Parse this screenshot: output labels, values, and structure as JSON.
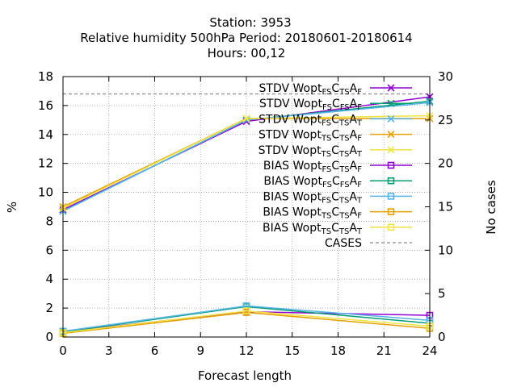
{
  "chart_data": {
    "type": "line",
    "title_lines": [
      "Station:     3953",
      "Relative humidity 500hPa    Period: 20180601-20180614",
      "Hours:  00,12"
    ],
    "xlabel": "Forecast length",
    "ylabel": "%",
    "y2label": "No cases",
    "x": [
      0,
      12,
      24
    ],
    "xticks": [
      0,
      3,
      6,
      9,
      12,
      15,
      18,
      21,
      24
    ],
    "xlim": [
      0,
      24
    ],
    "yticks": [
      0,
      2,
      4,
      6,
      8,
      10,
      12,
      14,
      16,
      18
    ],
    "ylim": [
      0,
      18
    ],
    "y2ticks": [
      0,
      5,
      10,
      15,
      20,
      25,
      30
    ],
    "y2lim": [
      0,
      30
    ],
    "grid": true,
    "legend_position": "top-right",
    "series": [
      {
        "name": "STDV Wopt_{FS}C_{TS}A_{F}",
        "legend_parts": [
          [
            "STDV Wopt",
            ""
          ],
          [
            "FS",
            "sub"
          ],
          [
            "C",
            ""
          ],
          [
            "TS",
            "sub"
          ],
          [
            "A",
            ""
          ],
          [
            "F",
            "sub"
          ]
        ],
        "values": [
          8.8,
          14.9,
          16.6
        ],
        "color": "#9400d3",
        "marker": "x",
        "axis": "y",
        "dash": ""
      },
      {
        "name": "STDV Wopt_{FS}C_{FS}A_{F}",
        "legend_parts": [
          [
            "STDV Wopt",
            ""
          ],
          [
            "FS",
            "sub"
          ],
          [
            "C",
            ""
          ],
          [
            "FS",
            "sub"
          ],
          [
            "A",
            ""
          ],
          [
            "F",
            "sub"
          ]
        ],
        "values": [
          8.7,
          15.0,
          16.3
        ],
        "color": "#009e73",
        "marker": "x",
        "axis": "y",
        "dash": ""
      },
      {
        "name": "STDV Wopt_{FS}C_{TS}A_{T}",
        "legend_parts": [
          [
            "STDV Wopt",
            ""
          ],
          [
            "FS",
            "sub"
          ],
          [
            "C",
            ""
          ],
          [
            "TS",
            "sub"
          ],
          [
            "A",
            ""
          ],
          [
            "T",
            "sub"
          ]
        ],
        "values": [
          8.7,
          15.0,
          16.2
        ],
        "color": "#56b4e9",
        "marker": "x",
        "axis": "y",
        "dash": ""
      },
      {
        "name": "STDV Wopt_{TS}C_{TS}A_{F}",
        "legend_parts": [
          [
            "STDV Wopt",
            ""
          ],
          [
            "TS",
            "sub"
          ],
          [
            "C",
            ""
          ],
          [
            "TS",
            "sub"
          ],
          [
            "A",
            ""
          ],
          [
            "F",
            "sub"
          ]
        ],
        "values": [
          9.0,
          15.1,
          15.1
        ],
        "color": "#e69f00",
        "marker": "x",
        "axis": "y",
        "dash": ""
      },
      {
        "name": "STDV Wopt_{TS}C_{TS}A_{T}",
        "legend_parts": [
          [
            "STDV Wopt",
            ""
          ],
          [
            "TS",
            "sub"
          ],
          [
            "C",
            ""
          ],
          [
            "TS",
            "sub"
          ],
          [
            "A",
            ""
          ],
          [
            "T",
            "sub"
          ]
        ],
        "values": [
          8.9,
          15.1,
          15.3
        ],
        "color": "#f0e442",
        "marker": "x",
        "axis": "y",
        "dash": ""
      },
      {
        "name": "BIAS Wopt_{FS}C_{TS}A_{F}",
        "legend_parts": [
          [
            "BIAS Wopt",
            ""
          ],
          [
            "FS",
            "sub"
          ],
          [
            "C",
            ""
          ],
          [
            "TS",
            "sub"
          ],
          [
            "A",
            ""
          ],
          [
            "F",
            "sub"
          ]
        ],
        "values": [
          0.35,
          1.75,
          1.5
        ],
        "color": "#9400d3",
        "marker": "square",
        "axis": "y",
        "dash": ""
      },
      {
        "name": "BIAS Wopt_{FS}C_{FS}A_{F}",
        "legend_parts": [
          [
            "BIAS Wopt",
            ""
          ],
          [
            "FS",
            "sub"
          ],
          [
            "C",
            ""
          ],
          [
            "FS",
            "sub"
          ],
          [
            "A",
            ""
          ],
          [
            "F",
            "sub"
          ]
        ],
        "values": [
          0.35,
          2.1,
          0.95
        ],
        "color": "#009e73",
        "marker": "square",
        "axis": "y",
        "dash": ""
      },
      {
        "name": "BIAS Wopt_{FS}C_{TS}A_{T}",
        "legend_parts": [
          [
            "BIAS Wopt",
            ""
          ],
          [
            "FS",
            "sub"
          ],
          [
            "C",
            ""
          ],
          [
            "TS",
            "sub"
          ],
          [
            "A",
            ""
          ],
          [
            "T",
            "sub"
          ]
        ],
        "values": [
          0.4,
          2.15,
          1.15
        ],
        "color": "#56b4e9",
        "marker": "square",
        "axis": "y",
        "dash": ""
      },
      {
        "name": "BIAS Wopt_{TS}C_{TS}A_{F}",
        "legend_parts": [
          [
            "BIAS Wopt",
            ""
          ],
          [
            "TS",
            "sub"
          ],
          [
            "C",
            ""
          ],
          [
            "TS",
            "sub"
          ],
          [
            "A",
            ""
          ],
          [
            "F",
            "sub"
          ]
        ],
        "values": [
          0.25,
          1.7,
          0.6
        ],
        "color": "#e69f00",
        "marker": "square",
        "axis": "y",
        "dash": ""
      },
      {
        "name": "BIAS Wopt_{TS}C_{TS}A_{T}",
        "legend_parts": [
          [
            "BIAS Wopt",
            ""
          ],
          [
            "TS",
            "sub"
          ],
          [
            "C",
            ""
          ],
          [
            "TS",
            "sub"
          ],
          [
            "A",
            ""
          ],
          [
            "T",
            "sub"
          ]
        ],
        "values": [
          0.3,
          1.8,
          0.75
        ],
        "color": "#f0e442",
        "marker": "square",
        "axis": "y",
        "dash": ""
      },
      {
        "name": "CASES",
        "legend_parts": [
          [
            "CASES",
            ""
          ]
        ],
        "values": [
          28,
          28,
          28
        ],
        "color": "#888888",
        "marker": "none",
        "axis": "y2",
        "dash": "4,3"
      }
    ]
  }
}
